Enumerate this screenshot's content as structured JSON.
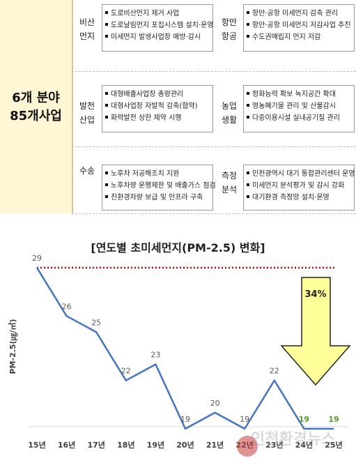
{
  "header": {
    "title_line1": "6개 분야",
    "title_line2": "85개사업"
  },
  "sections": [
    {
      "category": [
        "비산",
        "먼지"
      ],
      "items": [
        "도로비산먼지 제거 사업",
        "도로날림먼지 포집시스템 설치·운영",
        "미세먼지 발생사업장 예방·감시"
      ]
    },
    {
      "category": [
        "항만",
        "항공"
      ],
      "items": [
        "항만·공항 미세먼지 감축 관리",
        "항만·공항 미세먼지 저감사업 추진",
        "수도권매립지 먼지 저감"
      ]
    },
    {
      "category": [
        "발전",
        "산업"
      ],
      "items": [
        "대형배출사업장 총량관리",
        "대형사업장 자발적 감축(협약)",
        "화력발전 상한 제약 시행"
      ]
    },
    {
      "category": [
        "농업",
        "생활"
      ],
      "items": [
        "정화능력 확보 녹지공간 확대",
        "영농폐기물 관리 및 산불감시",
        "다중이용시설 실내공기질 관리"
      ]
    },
    {
      "category": [
        "수송"
      ],
      "items": [
        "노후차 저공해조치 지원",
        "노후차량 운행제한 및 배출가스 점검",
        "친환경차량 보급 및 인프라 구축"
      ]
    },
    {
      "category": [
        "측정",
        "분석"
      ],
      "items": [
        "인천광역시 대기 통합관리센터 운영",
        "미세먼지 분석평가 및 감시 강화",
        "대기환경 측정망 설치·운영"
      ]
    }
  ],
  "chart_data": {
    "type": "line",
    "title": "[연도별 초미세먼지(PM-2.5) 변화]",
    "ylabel": "PM-2.5(㎍/㎥)",
    "xlabel": "",
    "categories": [
      "15년",
      "16년",
      "17년",
      "18년",
      "19년",
      "20년",
      "21년",
      "22년",
      "23년",
      "24년",
      "25년"
    ],
    "values": [
      29,
      26,
      25,
      22,
      23,
      19,
      20,
      19,
      22,
      19,
      19
    ],
    "data_labels": [
      "29",
      "26",
      "25",
      "22",
      "23",
      "19",
      "20",
      "19",
      "22",
      "19",
      "19"
    ],
    "reference_line": 29,
    "ylim": [
      17,
      30
    ],
    "annotation": "34%",
    "line_color": "#4472c4",
    "ref_color": "#c00000",
    "arrow_fill": "#ffff99",
    "highlight_label_color": "#4e9a2a"
  },
  "watermark": "인천환경뉴스"
}
